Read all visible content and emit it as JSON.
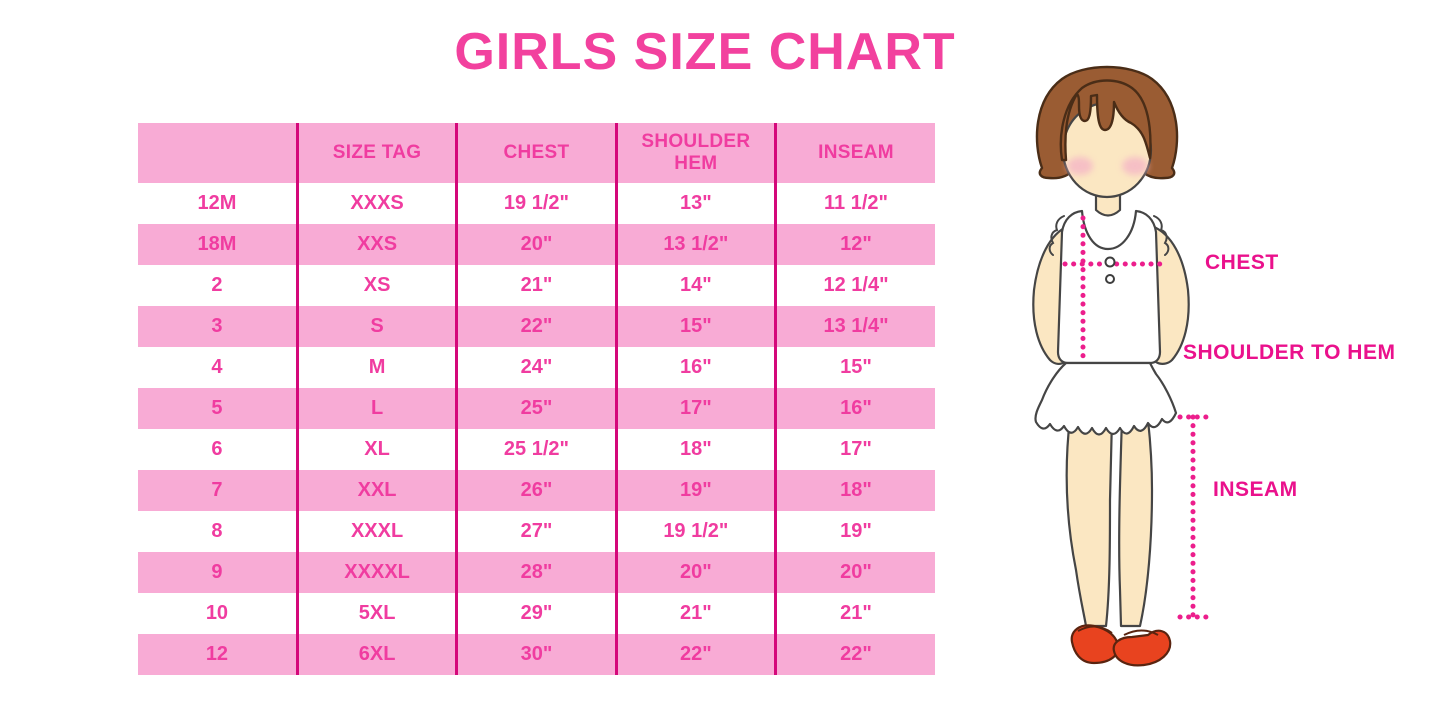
{
  "page": {
    "title": "GIRLS SIZE CHART"
  },
  "chart_data": {
    "type": "table",
    "title": "GIRLS SIZE CHART",
    "columns": [
      "",
      "SIZE TAG",
      "CHEST",
      "SHOULDER HEM",
      "INSEAM"
    ],
    "rows": [
      [
        "12M",
        "XXXS",
        "19 1/2\"",
        "13\"",
        "11 1/2\""
      ],
      [
        "18M",
        "XXS",
        "20\"",
        "13 1/2\"",
        "12\""
      ],
      [
        "2",
        "XS",
        "21\"",
        "14\"",
        "12 1/4\""
      ],
      [
        "3",
        "S",
        "22\"",
        "15\"",
        "13 1/4\""
      ],
      [
        "4",
        "M",
        "24\"",
        "16\"",
        "15\""
      ],
      [
        "5",
        "L",
        "25\"",
        "17\"",
        "16\""
      ],
      [
        "6",
        "XL",
        "25 1/2\"",
        "18\"",
        "17\""
      ],
      [
        "7",
        "XXL",
        "26\"",
        "19\"",
        "18\""
      ],
      [
        "8",
        "XXXL",
        "27\"",
        "19 1/2\"",
        "19\""
      ],
      [
        "9",
        "XXXXL",
        "28\"",
        "20\"",
        "20\""
      ],
      [
        "10",
        "5XL",
        "29\"",
        "21\"",
        "21\""
      ],
      [
        "12",
        "6XL",
        "30\"",
        "22\"",
        "22\""
      ]
    ],
    "row_stripe_pattern": "white/pink alternating, header pink",
    "legend_position": "none",
    "grid": "vertical magenta dividers only"
  },
  "measurement_labels": {
    "chest": "CHEST",
    "shoulder_to_hem": "SHOULDER TO HEM",
    "inseam": "INSEAM"
  },
  "illustration": {
    "subject": "girl-figure-with-measurement-lines",
    "parts": [
      "bob-hair",
      "face",
      "blush",
      "sleeveless-ruffle-top",
      "buttons",
      "ruffled-skirt",
      "legs",
      "red-mary-jane-shoes"
    ],
    "measure_lines": [
      "chest-horizontal-dotted",
      "shoulder-to-hem-vertical-dotted",
      "inseam-vertical-dotted-with-end-ticks"
    ]
  },
  "colors": {
    "title_pink": "#f2419e",
    "row_pink": "#f8abd5",
    "divider_magenta": "#d4087a",
    "table_text_pink": "#f03ca0",
    "label_magenta": "#ea118c",
    "measure_dot_magenta": "#ec1e8c",
    "hair_brown": "#9a5c33",
    "skin": "#fbe7c2",
    "blush": "#f5b9c6",
    "shoe_red": "#e8431f",
    "outline": "#454545"
  }
}
